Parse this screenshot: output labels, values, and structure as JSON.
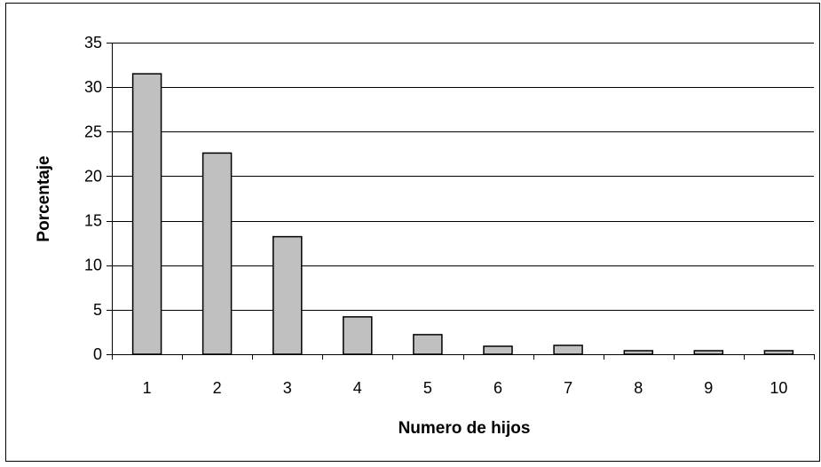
{
  "chart_data": {
    "type": "bar",
    "title": "",
    "xlabel": "Numero de hijos",
    "ylabel": "Porcentaje",
    "categories": [
      "1",
      "2",
      "3",
      "4",
      "5",
      "6",
      "7",
      "8",
      "9",
      "10"
    ],
    "values": [
      31.5,
      22.6,
      13.2,
      4.2,
      2.2,
      0.9,
      1.0,
      0.4,
      0.4,
      0.4
    ],
    "ylim": [
      0,
      35
    ],
    "yticks": [
      "0",
      "5",
      "10",
      "15",
      "20",
      "25",
      "30",
      "35"
    ],
    "grid": true,
    "legend": "none",
    "colors": {
      "bar_fill": "#c0c0c0",
      "bar_stroke": "#000000",
      "grid": "#000000",
      "background": "#ffffff"
    }
  }
}
